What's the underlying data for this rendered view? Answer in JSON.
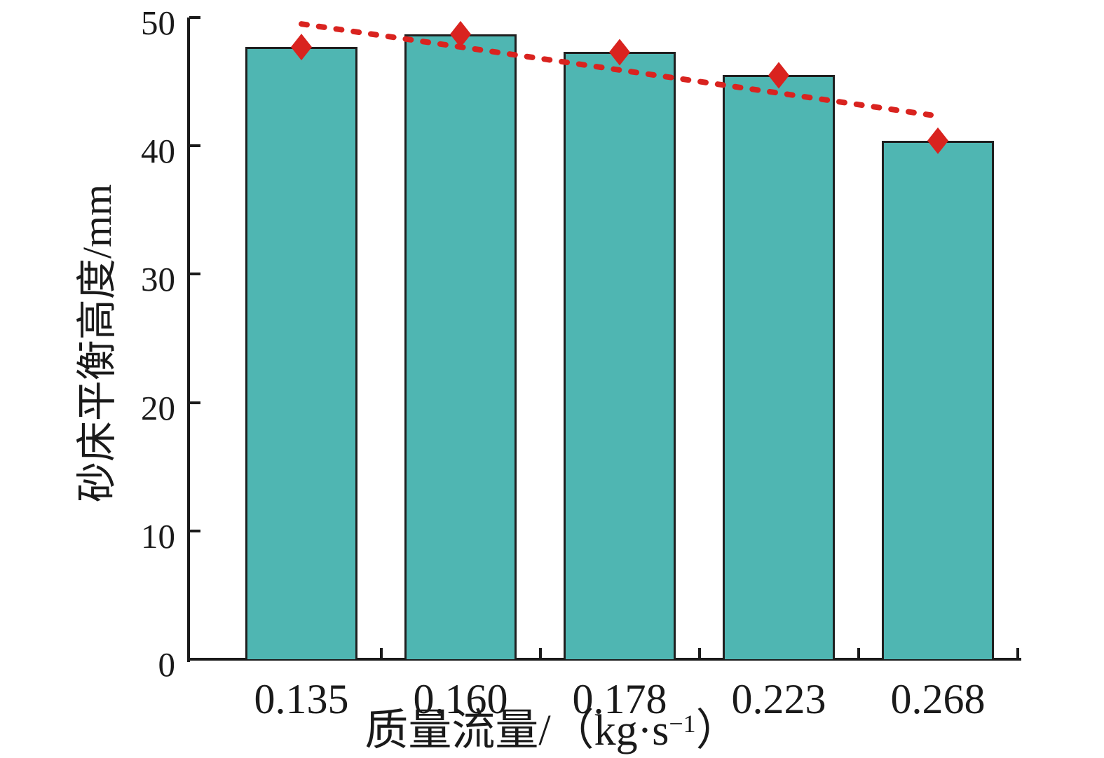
{
  "figure": {
    "background": "#ffffff"
  },
  "chart_data": {
    "type": "bar",
    "categories": [
      "0.135",
      "0.160",
      "0.178",
      "0.223",
      "0.268"
    ],
    "series": [
      {
        "name": "bars",
        "type": "bar",
        "values": [
          47.7,
          48.7,
          47.3,
          45.5,
          40.4
        ],
        "fill_color": "#4FB6B2",
        "border_color": "#1F1F1F"
      },
      {
        "name": "point-markers",
        "type": "scatter",
        "marker": "diamond",
        "values": [
          47.7,
          48.7,
          47.3,
          45.5,
          40.4
        ],
        "color": "#D9231F"
      },
      {
        "name": "trendline",
        "type": "line",
        "style": "dashed",
        "color": "#D9231F",
        "start": {
          "category_index": 0,
          "value": 49.5
        },
        "end": {
          "category_index": 4,
          "value": 42.4
        }
      }
    ],
    "title": "",
    "xlabel_parts": {
      "pre": "质量流量/（kg·s",
      "sup": "−1",
      "post": "）"
    },
    "ylabel": "砂床平衡高度/mm",
    "ylim": [
      0,
      50
    ],
    "yticks": [
      "0",
      "10",
      "20",
      "30",
      "40",
      "50"
    ],
    "grid": false,
    "legend_position": "none"
  },
  "colors": {
    "bar_fill": "#4FB6B2",
    "bar_border": "#1F1F1F",
    "accent_red": "#D9231F",
    "axis": "#1A1A1A"
  }
}
